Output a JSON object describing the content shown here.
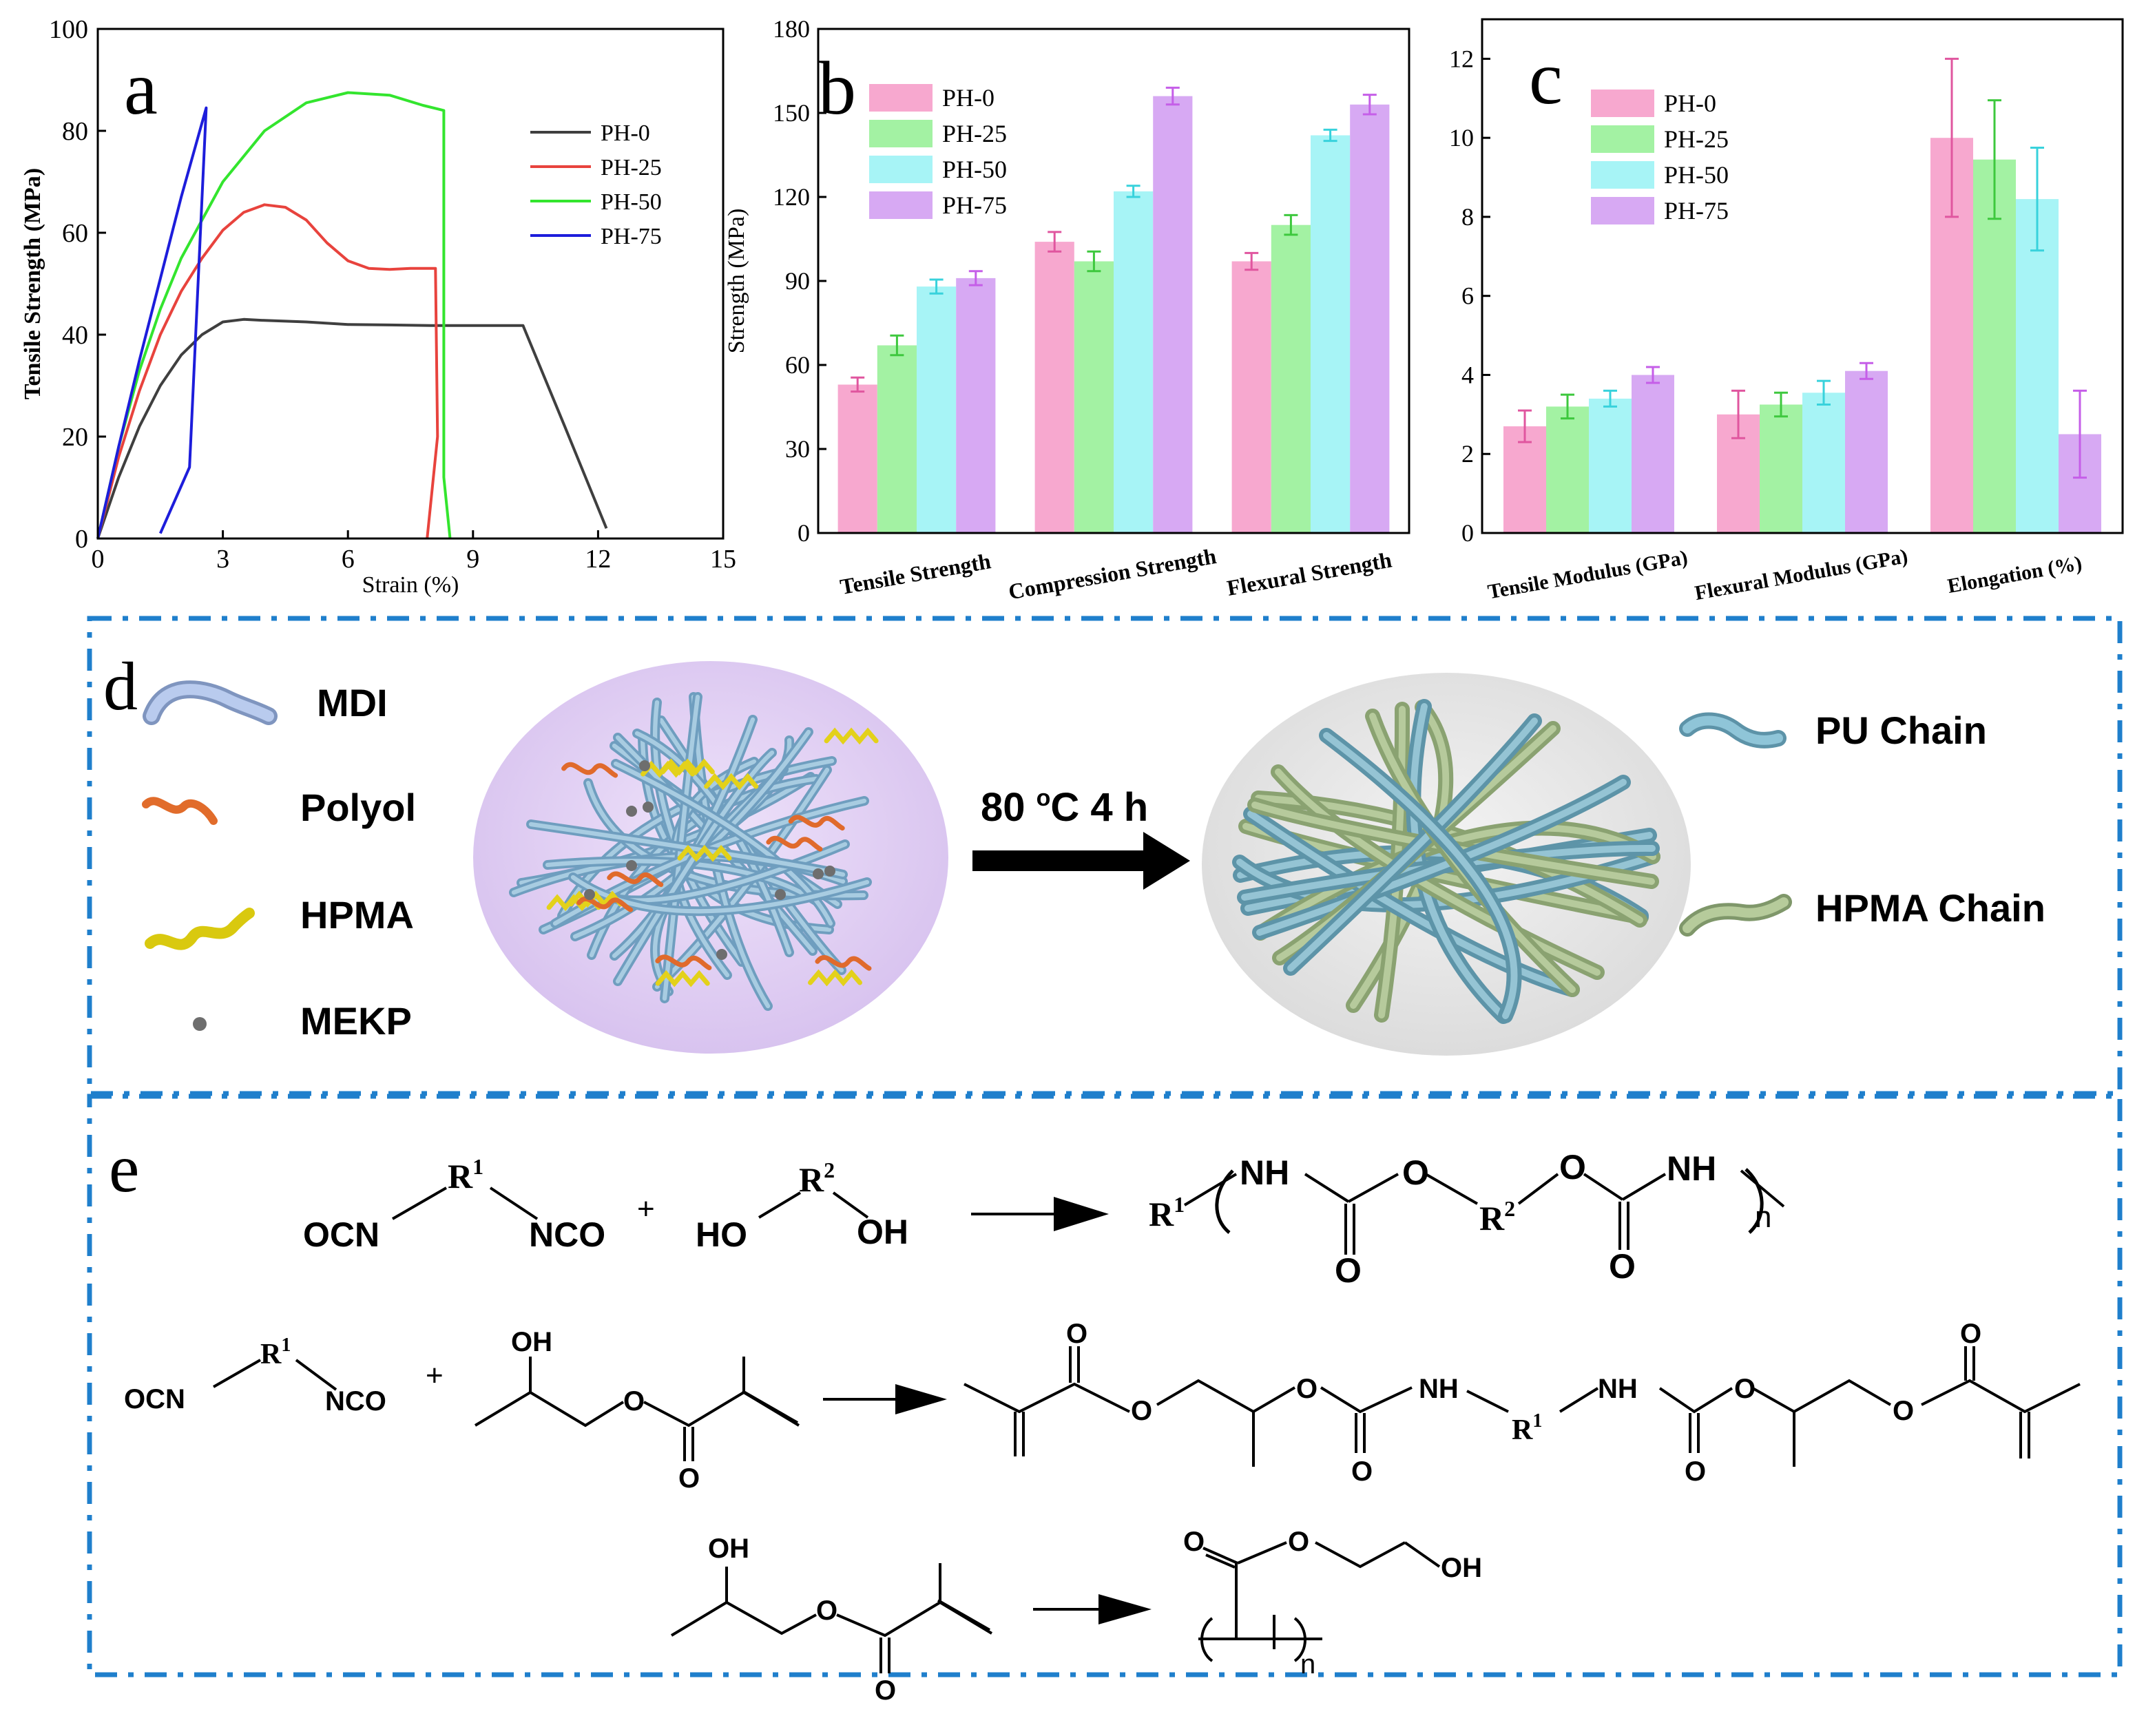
{
  "chart_data": [
    {
      "panel": "a",
      "type": "line",
      "xlabel": "Strain (%)",
      "ylabel": "Tensile Strength (MPa)",
      "xlim": [
        0,
        15
      ],
      "ylim": [
        0,
        100
      ],
      "xticks": [
        "0",
        "3",
        "6",
        "9",
        "12",
        "15"
      ],
      "yticks": [
        "0",
        "20",
        "40",
        "60",
        "80",
        "100"
      ],
      "legend_position": "top-right",
      "series": [
        {
          "name": "PH-0",
          "color": "#3f3f3f",
          "x": [
            0,
            0.5,
            1,
            1.5,
            2,
            2.5,
            3,
            3.5,
            4,
            5,
            6,
            7,
            8,
            9,
            10.2,
            11.2,
            12.2
          ],
          "y": [
            0,
            12,
            22,
            30,
            36,
            40,
            42.5,
            43,
            42.8,
            42.5,
            42,
            41.9,
            41.8,
            41.8,
            41.8,
            22,
            2
          ]
        },
        {
          "name": "PH-25",
          "color": "#e8433d",
          "x": [
            0,
            0.5,
            1,
            1.5,
            2,
            2.5,
            3,
            3.5,
            4,
            4.5,
            5,
            5.5,
            6,
            6.5,
            7,
            7.5,
            8.1,
            8.15,
            7.9
          ],
          "y": [
            0,
            16,
            29,
            40,
            48.5,
            55,
            60.5,
            64,
            65.5,
            65,
            62.5,
            58,
            54.5,
            53,
            52.8,
            53,
            53,
            20,
            0
          ]
        },
        {
          "name": "PH-50",
          "color": "#33e52e",
          "x": [
            0,
            0.5,
            1,
            1.5,
            2,
            3,
            4,
            5,
            6,
            7,
            7.8,
            8.3,
            8.3,
            8.45
          ],
          "y": [
            0,
            18,
            33,
            45,
            55,
            70,
            80,
            85.5,
            87.5,
            87,
            85,
            84,
            12,
            0
          ]
        },
        {
          "name": "PH-75",
          "color": "#1d1ddb",
          "x": [
            0,
            0.5,
            1,
            1.5,
            2,
            2.6,
            2.2,
            1.5
          ],
          "y": [
            0,
            18,
            35,
            51,
            67,
            84.5,
            14,
            1
          ]
        }
      ]
    },
    {
      "panel": "b",
      "type": "bar",
      "ylabel": "Strength (MPa)",
      "ylim": [
        0,
        180
      ],
      "yticks": [
        "0",
        "30",
        "60",
        "90",
        "120",
        "150",
        "180"
      ],
      "categories": [
        "Tensile Strength",
        "Compression Strength",
        "Flexural Strength"
      ],
      "legend_position": "top-left",
      "series": [
        {
          "name": "PH-0",
          "color": "#f7a8cf",
          "values": [
            53,
            104,
            97
          ],
          "errors": [
            2.5,
            3.5,
            3
          ]
        },
        {
          "name": "PH-25",
          "color": "#a3f2a3",
          "values": [
            67,
            97,
            110
          ],
          "errors": [
            3.5,
            3.5,
            3.5
          ]
        },
        {
          "name": "PH-50",
          "color": "#a7f4f6",
          "values": [
            88,
            122,
            142
          ],
          "errors": [
            2.5,
            2,
            2
          ]
        },
        {
          "name": "PH-75",
          "color": "#d7a9f3",
          "values": [
            91,
            156,
            153
          ],
          "errors": [
            2.5,
            3,
            3.5
          ]
        }
      ]
    },
    {
      "panel": "c",
      "type": "bar",
      "ylabel": "",
      "ylim": [
        0,
        13
      ],
      "yticks": [
        "0",
        "2",
        "4",
        "6",
        "8",
        "10",
        "12"
      ],
      "categories": [
        "Tensile Modulus (GPa)",
        "Flexural Modulus (GPa)",
        "Elongation (%)"
      ],
      "legend_position": "top-left",
      "series": [
        {
          "name": "PH-0",
          "color": "#f7a8cf",
          "values": [
            2.7,
            3.0,
            10.0
          ],
          "errors": [
            0.4,
            0.6,
            2.0
          ]
        },
        {
          "name": "PH-25",
          "color": "#a3f2a3",
          "values": [
            3.2,
            3.25,
            9.45
          ],
          "errors": [
            0.3,
            0.3,
            1.5
          ]
        },
        {
          "name": "PH-50",
          "color": "#a7f4f6",
          "values": [
            3.4,
            3.55,
            8.45
          ],
          "errors": [
            0.2,
            0.3,
            1.3
          ]
        },
        {
          "name": "PH-75",
          "color": "#d7a9f3",
          "values": [
            4.0,
            4.1,
            2.5
          ],
          "errors": [
            0.2,
            0.2,
            1.1
          ]
        }
      ]
    }
  ],
  "panel_labels": {
    "a": "a",
    "b": "b",
    "c": "c",
    "d": "d",
    "e": "e"
  },
  "scheme_d": {
    "legend": [
      "MDI",
      "Polyol",
      "HPMA",
      "MEKP"
    ],
    "arrow_label_main": "80 ",
    "arrow_label_sup": "o",
    "arrow_label_rest": "C 4 h",
    "right_legend": [
      "PU Chain",
      "HPMA Chain"
    ],
    "colors": {
      "mdi": "#a9bfe3",
      "pu": "#7fb6cf",
      "polyol": "#ea7a3c",
      "hpma": "#e8dc1c",
      "hpma_chain": "#a8bd8c",
      "mekp": "#707070"
    }
  },
  "scheme_e": {
    "r1": "R",
    "r1_sup": "1",
    "r2": "R",
    "r2_sup": "2",
    "ocn": "OCN",
    "nco": "NCO",
    "ho": "HO",
    "oh": "OH",
    "plus": "+",
    "nh": "NH",
    "o": "O",
    "n": "n"
  }
}
